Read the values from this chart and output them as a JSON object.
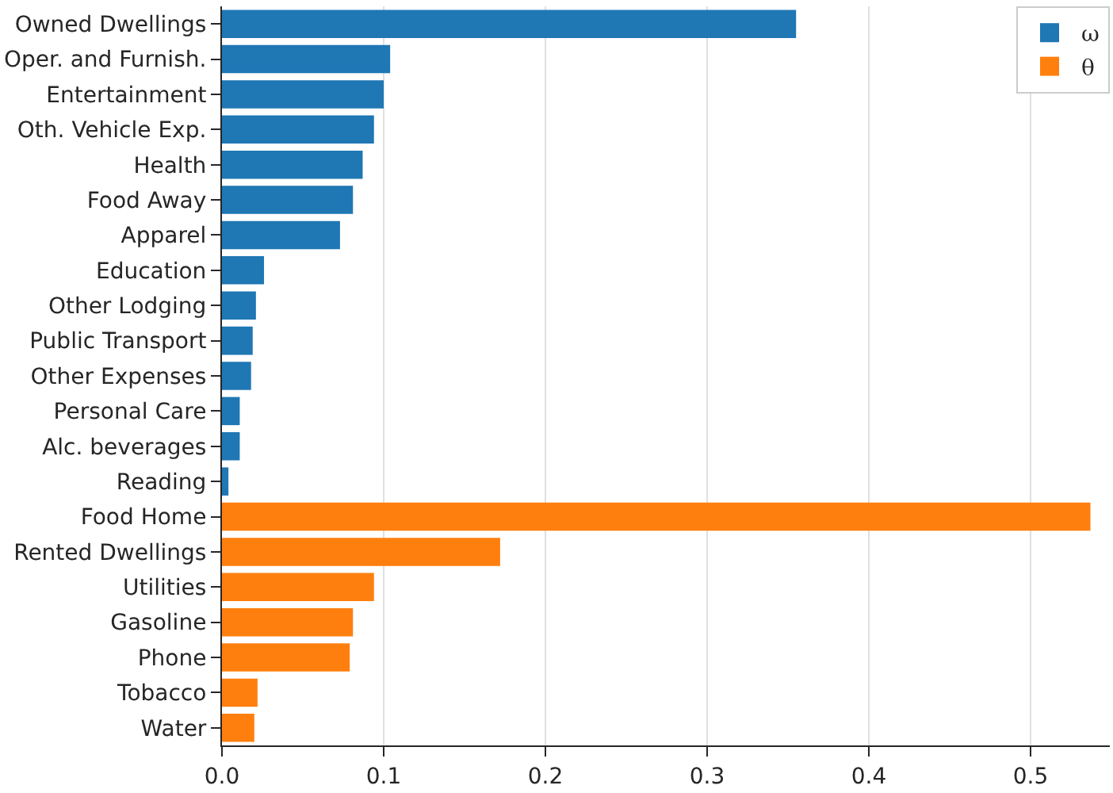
{
  "chart_data": {
    "type": "bar",
    "orientation": "horizontal",
    "categories": [
      "Owned Dwellings",
      "Oper. and Furnish.",
      "Entertainment",
      "Oth. Vehicle Exp.",
      "Health",
      "Food Away",
      "Apparel",
      "Education",
      "Other Lodging",
      "Public Transport",
      "Other Expenses",
      "Personal Care",
      "Alc. beverages",
      "Reading",
      "Food Home",
      "Rented Dwellings",
      "Utilities",
      "Gasoline",
      "Phone",
      "Tobacco",
      "Water"
    ],
    "series": [
      {
        "name": "ω",
        "color": "#1f77b4",
        "values": [
          0.355,
          0.104,
          0.1,
          0.094,
          0.087,
          0.081,
          0.073,
          0.026,
          0.021,
          0.019,
          0.018,
          0.011,
          0.011,
          0.004,
          null,
          null,
          null,
          null,
          null,
          null,
          null
        ]
      },
      {
        "name": "θ",
        "color": "#ff7f0e",
        "values": [
          null,
          null,
          null,
          null,
          null,
          null,
          null,
          null,
          null,
          null,
          null,
          null,
          null,
          null,
          0.537,
          0.172,
          0.094,
          0.081,
          0.079,
          0.022,
          0.02
        ]
      }
    ],
    "xlim": [
      0,
      0.549
    ],
    "xticks": [
      {
        "value": 0,
        "label": "0.0"
      },
      0.1,
      0.2,
      0.3,
      0.4,
      0.5
    ],
    "grid": "x",
    "legend": "top right"
  }
}
